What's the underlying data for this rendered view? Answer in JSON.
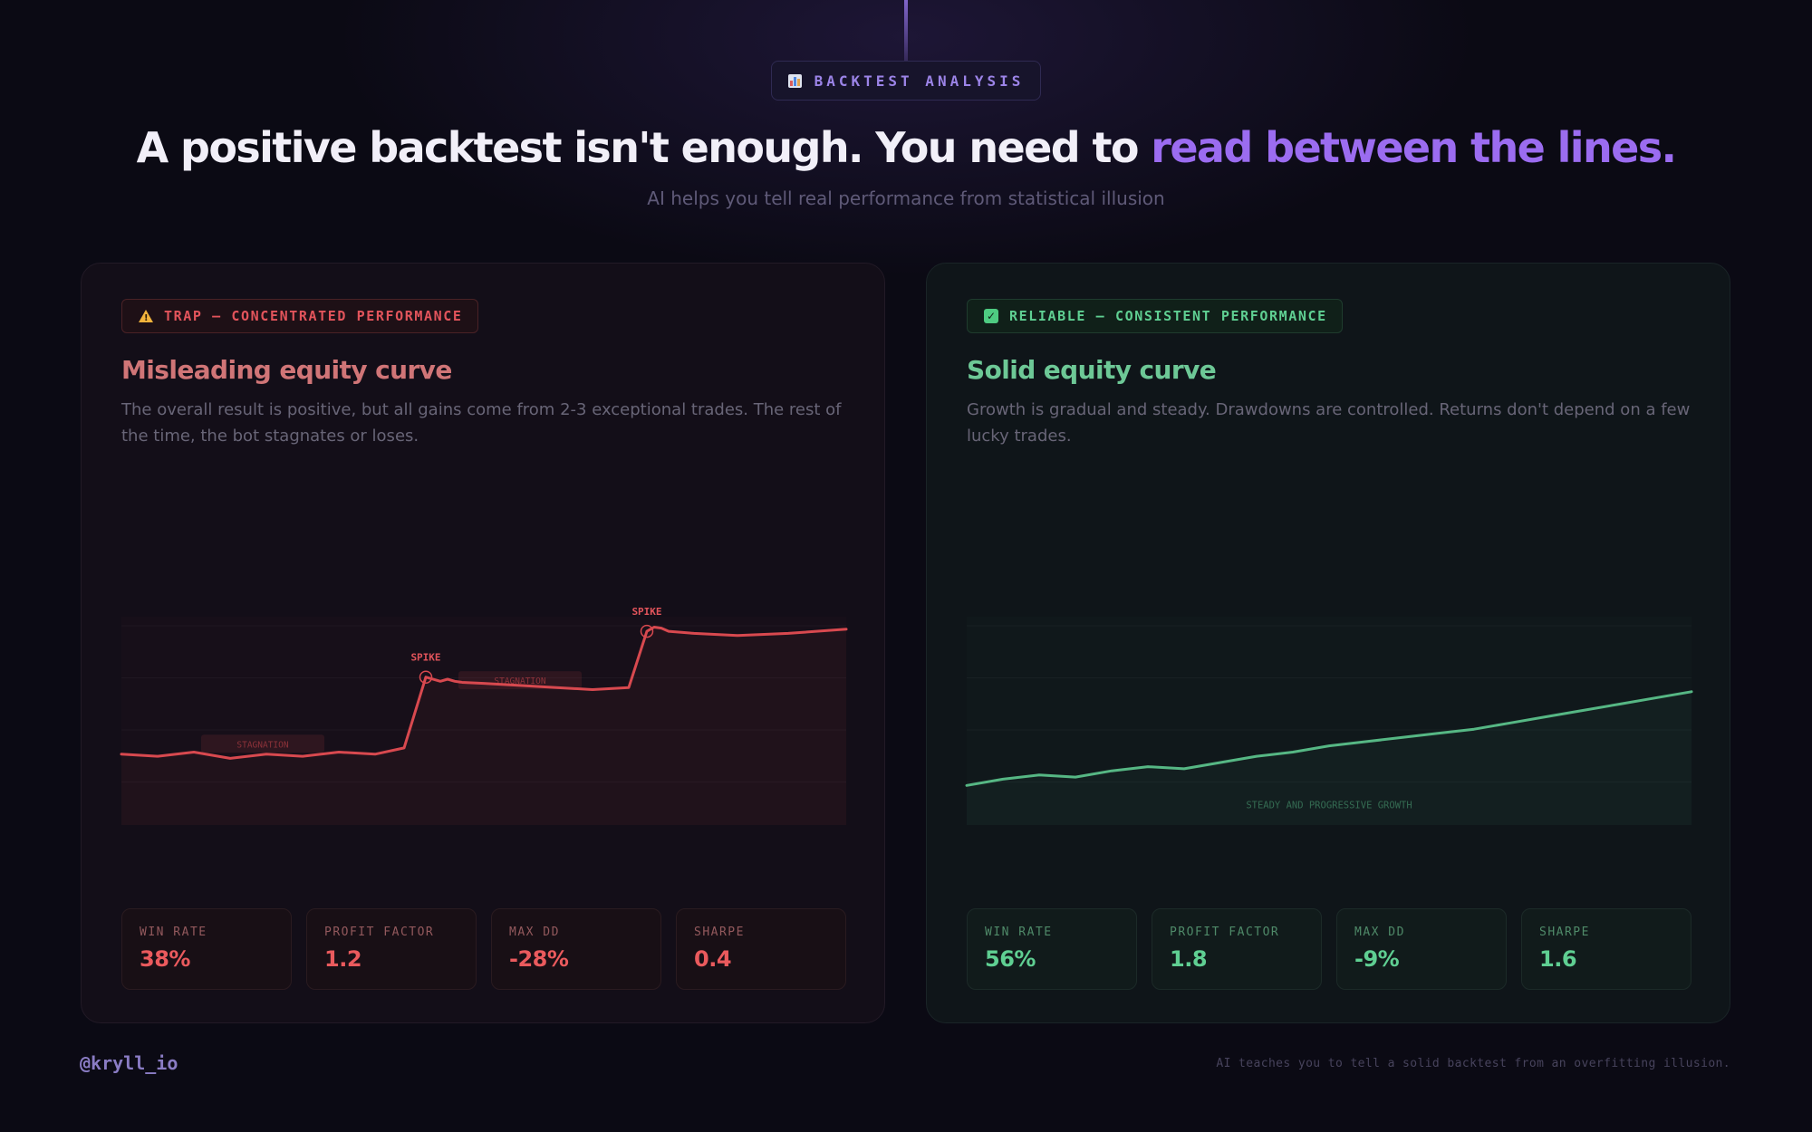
{
  "header": {
    "kicker_icon": "bar-chart-icon",
    "kicker": "BACKTEST ANALYSIS",
    "headline_main": "A positive backtest isn't enough. You need to ",
    "headline_accent": "read between the lines.",
    "subhead": "AI helps you tell real performance from statistical illusion",
    "accent_color": "#9b6cf0"
  },
  "cards": [
    {
      "badge_icon": "warning-icon",
      "badge": "TRAP — CONCENTRATED PERFORMANCE",
      "title": "Misleading equity curve",
      "description": "The overall result is positive, but all gains come from 2-3 exceptional trades. The rest of the time, the bot stagnates or loses.",
      "color": "#d8494f",
      "metrics": [
        {
          "label": "WIN RATE",
          "value": "38%"
        },
        {
          "label": "PROFIT FACTOR",
          "value": "1.2"
        },
        {
          "label": "MAX DD",
          "value": "-28%"
        },
        {
          "label": "SHARPE",
          "value": "0.4"
        }
      ]
    },
    {
      "badge_icon": "check-icon",
      "badge": "RELIABLE — CONSISTENT PERFORMANCE",
      "title": "Solid equity curve",
      "description": "Growth is gradual and steady. Drawdowns are controlled. Returns don't depend on a few lucky trades.",
      "color": "#56b784",
      "metrics": [
        {
          "label": "WIN RATE",
          "value": "56%"
        },
        {
          "label": "PROFIT FACTOR",
          "value": "1.8"
        },
        {
          "label": "MAX DD",
          "value": "-9%"
        },
        {
          "label": "SHARPE",
          "value": "1.6"
        }
      ]
    }
  ],
  "chart_data": [
    {
      "type": "line",
      "title": "Misleading equity curve",
      "xlim": [
        0,
        100
      ],
      "ylim": [
        0,
        100
      ],
      "grid": true,
      "x": [
        0,
        5,
        10,
        15,
        20,
        25,
        30,
        35,
        39,
        42,
        44,
        45,
        46,
        47,
        50,
        55,
        60,
        65,
        70,
        72.5,
        73.5,
        74.5,
        75.5,
        79,
        85,
        92,
        100
      ],
      "y": [
        34,
        33,
        35,
        32,
        34,
        33,
        35,
        34,
        37,
        71,
        69,
        70,
        69,
        68.5,
        68,
        67,
        66,
        65,
        66,
        93,
        95,
        94.5,
        93,
        92,
        91,
        92,
        94
      ],
      "annotations": [
        {
          "text": "SPIKE",
          "x": 37,
          "y": 71
        },
        {
          "text": "SPIKE",
          "x": 66,
          "y": 95
        },
        {
          "text": "STAGNATION",
          "x": 19.5,
          "y": 39
        },
        {
          "text": "STAGNATION",
          "x": 55,
          "y": 69.5
        }
      ]
    },
    {
      "type": "line",
      "title": "Solid equity curve",
      "xlim": [
        0,
        100
      ],
      "ylim": [
        0,
        100
      ],
      "grid": true,
      "x": [
        0,
        5,
        10,
        15,
        20,
        25,
        30,
        35,
        40,
        45,
        50,
        55,
        60,
        65,
        70,
        75,
        80,
        85,
        90,
        95,
        100
      ],
      "y": [
        19,
        22,
        24,
        23,
        26,
        28,
        27,
        30,
        33,
        35,
        38,
        40,
        42,
        44,
        46,
        49,
        52,
        55,
        58,
        61,
        64
      ],
      "annotations": [
        {
          "text": "STEADY AND PROGRESSIVE GROWTH",
          "x": 50,
          "y": 8
        }
      ]
    }
  ],
  "footer": {
    "handle": "@kryll_io",
    "note": "AI teaches you to tell a solid backtest from an overfitting illusion."
  }
}
